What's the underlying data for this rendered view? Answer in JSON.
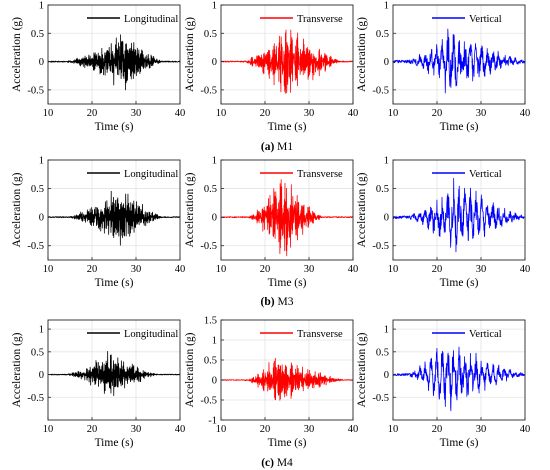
{
  "figure": {
    "xlabel": "Time (s)",
    "ylabel": "Acceleration (g)",
    "colors": {
      "Longitudinal": "#000000",
      "Transverse": "#ff0000",
      "Vertical": "#0000ff"
    }
  },
  "chart_data": [
    {
      "type": "line",
      "group": "M1",
      "caption_letter": "(a)",
      "caption_label": "M1",
      "series": [
        {
          "name": "Longitudinal"
        }
      ],
      "xlim": [
        10,
        40
      ],
      "ylim": [
        -0.75,
        1
      ],
      "xticks": [
        "10",
        "20",
        "30",
        "40"
      ],
      "yticks": [
        "-0.5",
        "0",
        "0.5",
        "1"
      ],
      "grid": true,
      "legend": "top-right",
      "signal": {
        "start": 14,
        "peak": 27,
        "end": 36,
        "amp": 0.55,
        "seed": 11,
        "freq": 2.2,
        "noise": 0.05
      }
    },
    {
      "type": "line",
      "group": "M1",
      "series": [
        {
          "name": "Transverse"
        }
      ],
      "xlim": [
        10,
        40
      ],
      "ylim": [
        -0.75,
        1
      ],
      "xticks": [
        "10",
        "20",
        "30",
        "40"
      ],
      "yticks": [
        "-0.5",
        "0",
        "0.5",
        "1"
      ],
      "grid": true,
      "legend": "top-right",
      "signal": {
        "start": 15,
        "peak": 25,
        "end": 37,
        "amp": 0.75,
        "seed": 23,
        "freq": 3.0,
        "noise": 0.05
      }
    },
    {
      "type": "line",
      "group": "M1",
      "series": [
        {
          "name": "Vertical"
        }
      ],
      "xlim": [
        10,
        40
      ],
      "ylim": [
        -0.75,
        1
      ],
      "xticks": [
        "10",
        "20",
        "30",
        "40"
      ],
      "yticks": [
        "-0.5",
        "0",
        "0.5",
        "1"
      ],
      "grid": true,
      "legend": "top-right",
      "signal": {
        "start": 13,
        "peak": 23,
        "end": 40,
        "amp": 0.55,
        "seed": 37,
        "freq": 6.0,
        "noise": 0.12
      }
    },
    {
      "type": "line",
      "group": "M3",
      "caption_letter": "(b)",
      "caption_label": "M3",
      "series": [
        {
          "name": "Longitudinal"
        }
      ],
      "xlim": [
        10,
        40
      ],
      "ylim": [
        -0.75,
        1
      ],
      "xticks": [
        "10",
        "20",
        "30",
        "40"
      ],
      "yticks": [
        "-0.5",
        "0",
        "0.5",
        "1"
      ],
      "grid": true,
      "legend": "top-right",
      "signal": {
        "start": 14,
        "peak": 26,
        "end": 36,
        "amp": 0.55,
        "seed": 41,
        "freq": 2.2,
        "noise": 0.05
      }
    },
    {
      "type": "line",
      "group": "M3",
      "series": [
        {
          "name": "Transverse"
        }
      ],
      "xlim": [
        10,
        40
      ],
      "ylim": [
        -0.75,
        1
      ],
      "xticks": [
        "10",
        "20",
        "30",
        "40"
      ],
      "yticks": [
        "-0.5",
        "0",
        "0.5",
        "1"
      ],
      "grid": true,
      "legend": "top-right",
      "signal": {
        "start": 16,
        "peak": 24,
        "end": 33,
        "amp": 0.85,
        "seed": 53,
        "freq": 3.0,
        "noise": 0.05
      }
    },
    {
      "type": "line",
      "group": "M3",
      "series": [
        {
          "name": "Vertical"
        }
      ],
      "xlim": [
        10,
        40
      ],
      "ylim": [
        -0.75,
        1
      ],
      "xticks": [
        "10",
        "20",
        "30",
        "40"
      ],
      "yticks": [
        "-0.5",
        "0",
        "0.5",
        "1"
      ],
      "grid": true,
      "legend": "top-right",
      "signal": {
        "start": 13,
        "peak": 24,
        "end": 40,
        "amp": 0.6,
        "seed": 67,
        "freq": 6.0,
        "noise": 0.12
      }
    },
    {
      "type": "line",
      "group": "M4",
      "caption_letter": "(c)",
      "caption_label": "M4",
      "series": [
        {
          "name": "Longitudinal"
        }
      ],
      "xlim": [
        10,
        40
      ],
      "ylim": [
        -1,
        1.2
      ],
      "xticks": [
        "10",
        "20",
        "30",
        "40"
      ],
      "yticks": [
        "-0.5",
        "0",
        "0.5",
        "1"
      ],
      "grid": true,
      "legend": "top-right",
      "signal": {
        "start": 14,
        "peak": 24,
        "end": 35,
        "amp": 0.55,
        "seed": 71,
        "freq": 2.2,
        "noise": 0.05
      }
    },
    {
      "type": "line",
      "group": "M4",
      "series": [
        {
          "name": "Transverse"
        }
      ],
      "xlim": [
        10,
        40
      ],
      "ylim": [
        -1,
        1.5
      ],
      "xticks": [
        "10",
        "20",
        "30",
        "40"
      ],
      "yticks": [
        "-1",
        "-0.5",
        "0",
        "0.5",
        "1",
        "1.5"
      ],
      "grid": true,
      "legend": "top-right",
      "signal": {
        "start": 15,
        "peak": 23,
        "end": 38,
        "amp": 0.65,
        "seed": 83,
        "freq": 3.0,
        "noise": 0.05
      }
    },
    {
      "type": "line",
      "group": "M4",
      "series": [
        {
          "name": "Vertical"
        }
      ],
      "xlim": [
        10,
        40
      ],
      "ylim": [
        -1,
        1.2
      ],
      "xticks": [
        "10",
        "20",
        "30",
        "40"
      ],
      "yticks": [
        "-0.5",
        "0",
        "0.5",
        "1"
      ],
      "grid": true,
      "legend": "top-right",
      "signal": {
        "start": 13,
        "peak": 22,
        "end": 40,
        "amp": 0.75,
        "seed": 97,
        "freq": 6.0,
        "noise": 0.12
      }
    }
  ]
}
